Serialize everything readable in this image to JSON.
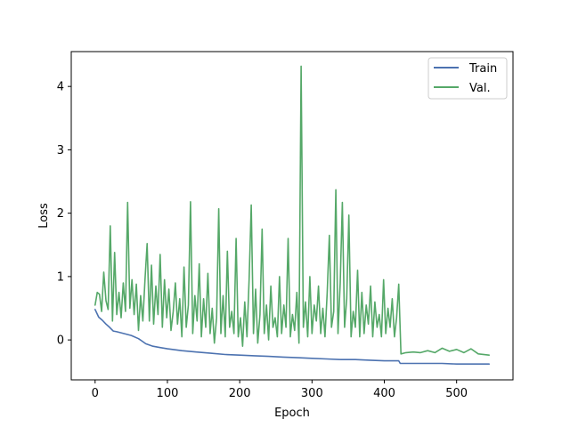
{
  "chart_data": {
    "type": "line",
    "title": "",
    "xlabel": "Epoch",
    "ylabel": "Loss",
    "xlim": [
      -33,
      578
    ],
    "ylim": [
      -0.63,
      4.55
    ],
    "xticks": [
      "0",
      "100",
      "200",
      "300",
      "400",
      "500"
    ],
    "xtick_values": [
      0,
      100,
      200,
      300,
      400,
      500
    ],
    "yticks": [
      "0",
      "1",
      "2",
      "3",
      "4"
    ],
    "ytick_values": [
      0,
      1,
      2,
      3,
      4
    ],
    "grid": false,
    "legend_position": "top-right",
    "series": [
      {
        "name": "Train",
        "color": "#4c72b0",
        "x": [
          0,
          5,
          10,
          15,
          20,
          25,
          30,
          40,
          50,
          60,
          65,
          70,
          80,
          90,
          100,
          120,
          140,
          160,
          180,
          200,
          220,
          240,
          260,
          280,
          300,
          320,
          340,
          360,
          380,
          400,
          418,
          420,
          422,
          440,
          460,
          480,
          500,
          520,
          545
        ],
        "y": [
          0.48,
          0.36,
          0.31,
          0.25,
          0.2,
          0.14,
          0.13,
          0.1,
          0.07,
          0.02,
          -0.02,
          -0.06,
          -0.1,
          -0.12,
          -0.14,
          -0.17,
          -0.19,
          -0.21,
          -0.23,
          -0.24,
          -0.25,
          -0.26,
          -0.27,
          -0.28,
          -0.29,
          -0.3,
          -0.31,
          -0.31,
          -0.32,
          -0.33,
          -0.33,
          -0.33,
          -0.37,
          -0.37,
          -0.37,
          -0.37,
          -0.38,
          -0.38,
          -0.38
        ]
      },
      {
        "name": "Val.",
        "color": "#55a868",
        "x": [
          0,
          3,
          6,
          9,
          12,
          15,
          18,
          21,
          24,
          27,
          30,
          33,
          36,
          39,
          42,
          45,
          48,
          51,
          54,
          57,
          60,
          63,
          66,
          69,
          72,
          75,
          78,
          81,
          84,
          87,
          90,
          93,
          96,
          99,
          102,
          105,
          108,
          111,
          114,
          117,
          120,
          123,
          126,
          129,
          132,
          135,
          138,
          141,
          144,
          147,
          150,
          153,
          156,
          159,
          162,
          165,
          168,
          171,
          174,
          177,
          180,
          183,
          186,
          189,
          192,
          195,
          198,
          201,
          204,
          207,
          210,
          213,
          216,
          219,
          222,
          225,
          228,
          231,
          234,
          237,
          240,
          243,
          246,
          249,
          252,
          255,
          258,
          261,
          264,
          267,
          270,
          273,
          276,
          279,
          282,
          285,
          288,
          291,
          294,
          297,
          300,
          303,
          306,
          309,
          312,
          315,
          318,
          321,
          324,
          327,
          330,
          333,
          336,
          339,
          342,
          345,
          348,
          351,
          354,
          357,
          360,
          363,
          366,
          369,
          372,
          375,
          378,
          381,
          384,
          387,
          390,
          393,
          396,
          399,
          402,
          405,
          408,
          411,
          414,
          417,
          420,
          423,
          430,
          440,
          450,
          460,
          470,
          480,
          490,
          500,
          510,
          520,
          530,
          545
        ],
        "y": [
          0.55,
          0.75,
          0.72,
          0.45,
          1.07,
          0.62,
          0.48,
          1.8,
          0.3,
          1.38,
          0.4,
          0.75,
          0.35,
          0.9,
          0.45,
          2.17,
          0.5,
          0.95,
          0.4,
          0.88,
          0.15,
          0.7,
          0.3,
          0.95,
          1.52,
          0.3,
          1.18,
          0.25,
          0.85,
          0.4,
          1.35,
          0.2,
          0.95,
          0.35,
          0.8,
          0.15,
          0.45,
          0.9,
          0.25,
          0.65,
          0.05,
          1.15,
          0.2,
          0.55,
          2.18,
          0.1,
          0.7,
          0.3,
          1.2,
          0.05,
          0.65,
          0.2,
          1.05,
          0.1,
          0.5,
          -0.05,
          0.35,
          2.07,
          0.1,
          0.7,
          0.05,
          1.4,
          0.2,
          0.45,
          0.1,
          1.6,
          0.05,
          0.35,
          -0.1,
          0.6,
          0.05,
          0.95,
          2.13,
          0.1,
          0.8,
          -0.05,
          0.4,
          1.75,
          0.1,
          0.55,
          0.0,
          0.85,
          0.2,
          0.35,
          0.05,
          1.0,
          0.1,
          0.55,
          0.2,
          1.6,
          0.05,
          0.4,
          0.15,
          0.75,
          -0.05,
          4.32,
          0.2,
          0.6,
          0.05,
          1.0,
          0.1,
          0.55,
          0.3,
          0.85,
          0.1,
          0.5,
          0.05,
          0.75,
          1.65,
          0.2,
          0.45,
          2.37,
          0.1,
          0.9,
          2.17,
          0.2,
          0.65,
          1.97,
          0.05,
          0.45,
          0.2,
          1.1,
          0.05,
          0.75,
          0.1,
          0.55,
          0.25,
          0.85,
          0.05,
          0.6,
          0.2,
          0.4,
          0.05,
          0.95,
          0.1,
          0.5,
          0.2,
          0.65,
          0.05,
          0.35,
          0.88,
          -0.22,
          -0.2,
          -0.19,
          -0.2,
          -0.17,
          -0.2,
          -0.13,
          -0.18,
          -0.15,
          -0.2,
          -0.14,
          -0.22,
          -0.24
        ]
      }
    ]
  }
}
